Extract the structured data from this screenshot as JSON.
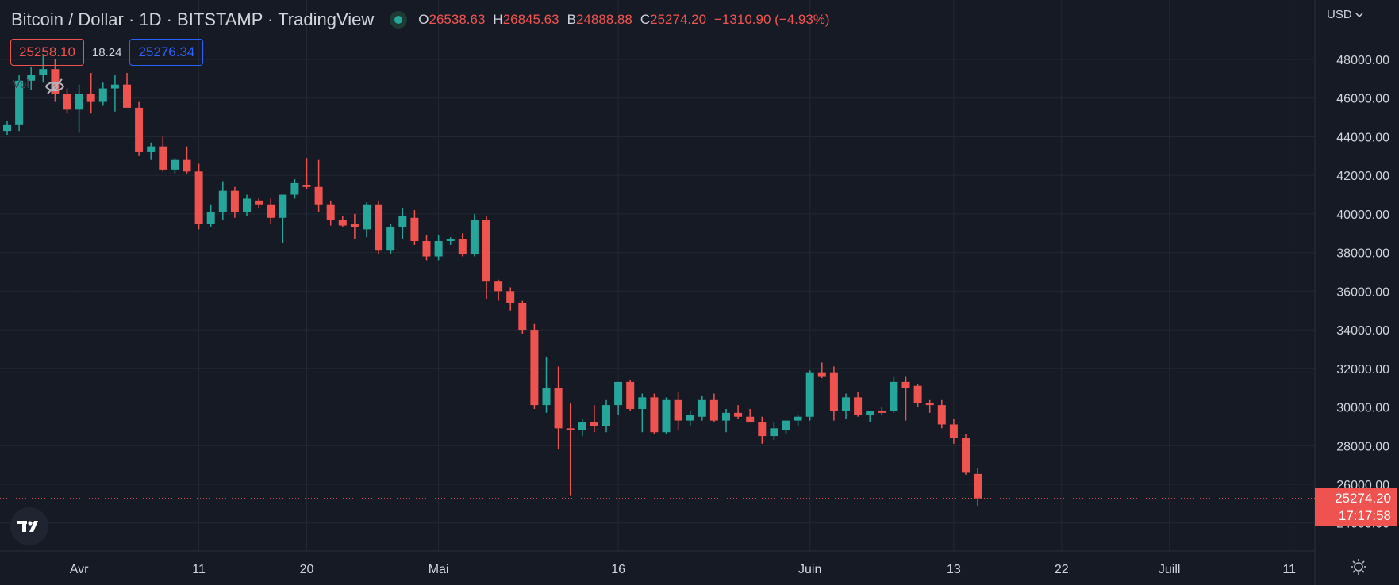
{
  "header": {
    "title": "Bitcoin / Dollar · 1D · BITSTAMP · TradingView",
    "ohlc": {
      "o_key": "O",
      "o": "26538.63",
      "h_key": "H",
      "h": "26845.63",
      "b_key": "B",
      "b": "24888.88",
      "c_key": "C",
      "c": "25274.20",
      "change": "−1310.90 (−4.93%)"
    }
  },
  "quotes": {
    "sell": "25258.10",
    "spread": "18.24",
    "buy": "25276.34"
  },
  "vol_label": "Vol",
  "currency": "USD",
  "last_price": {
    "value": "25274.20",
    "countdown": "17:17:58"
  },
  "colors": {
    "background": "#161a25",
    "up": "#26a69a",
    "down": "#ef5350",
    "grid": "#232733",
    "axis_text": "#d1d4dc"
  },
  "chart_data": {
    "type": "candlestick",
    "title": "Bitcoin / Dollar",
    "interval": "1D",
    "exchange": "BITSTAMP",
    "currency": "USD",
    "ylim": [
      23000,
      49000
    ],
    "y_ticks": [
      "48000.00",
      "46000.00",
      "44000.00",
      "42000.00",
      "40000.00",
      "38000.00",
      "36000.00",
      "34000.00",
      "32000.00",
      "30000.00",
      "28000.00",
      "26000.00",
      "24000.00"
    ],
    "x_ticks": [
      {
        "label": "Avr",
        "index": 6
      },
      {
        "label": "11",
        "index": 16
      },
      {
        "label": "20",
        "index": 25
      },
      {
        "label": "Mai",
        "index": 36
      },
      {
        "label": "16",
        "index": 51
      },
      {
        "label": "Juin",
        "index": 67
      },
      {
        "label": "13",
        "index": 79
      },
      {
        "label": "22",
        "index": 88
      },
      {
        "label": "Juill",
        "index": 97
      },
      {
        "label": "11",
        "index": 107
      }
    ],
    "total_slots": 110,
    "candles": [
      {
        "i": 0,
        "o": 44300,
        "h": 44800,
        "l": 44100,
        "c": 44600
      },
      {
        "i": 1,
        "o": 44600,
        "h": 47200,
        "l": 44300,
        "c": 46900
      },
      {
        "i": 2,
        "o": 46900,
        "h": 47600,
        "l": 46400,
        "c": 47200
      },
      {
        "i": 3,
        "o": 47200,
        "h": 48200,
        "l": 46800,
        "c": 47500
      },
      {
        "i": 4,
        "o": 47500,
        "h": 48000,
        "l": 45800,
        "c": 46200
      },
      {
        "i": 5,
        "o": 46200,
        "h": 46500,
        "l": 45200,
        "c": 45400
      },
      {
        "i": 6,
        "o": 45400,
        "h": 46700,
        "l": 44200,
        "c": 46200
      },
      {
        "i": 7,
        "o": 46200,
        "h": 47300,
        "l": 45200,
        "c": 45800
      },
      {
        "i": 8,
        "o": 45800,
        "h": 46800,
        "l": 45600,
        "c": 46500
      },
      {
        "i": 9,
        "o": 46500,
        "h": 47200,
        "l": 45300,
        "c": 46700
      },
      {
        "i": 10,
        "o": 46700,
        "h": 47300,
        "l": 45600,
        "c": 45500
      },
      {
        "i": 11,
        "o": 45500,
        "h": 45800,
        "l": 43000,
        "c": 43200
      },
      {
        "i": 12,
        "o": 43200,
        "h": 43700,
        "l": 42800,
        "c": 43500
      },
      {
        "i": 13,
        "o": 43500,
        "h": 44000,
        "l": 42200,
        "c": 42300
      },
      {
        "i": 14,
        "o": 42300,
        "h": 42900,
        "l": 42100,
        "c": 42800
      },
      {
        "i": 15,
        "o": 42800,
        "h": 43500,
        "l": 42100,
        "c": 42200
      },
      {
        "i": 16,
        "o": 42200,
        "h": 42600,
        "l": 39200,
        "c": 39500
      },
      {
        "i": 17,
        "o": 39500,
        "h": 40500,
        "l": 39300,
        "c": 40100
      },
      {
        "i": 18,
        "o": 40100,
        "h": 41700,
        "l": 39700,
        "c": 41200
      },
      {
        "i": 19,
        "o": 41200,
        "h": 41400,
        "l": 39800,
        "c": 40100
      },
      {
        "i": 20,
        "o": 40100,
        "h": 41000,
        "l": 39900,
        "c": 40800
      },
      {
        "i": 21,
        "o": 40700,
        "h": 40800,
        "l": 40300,
        "c": 40500
      },
      {
        "i": 22,
        "o": 40500,
        "h": 40800,
        "l": 39500,
        "c": 39800
      },
      {
        "i": 23,
        "o": 39800,
        "h": 41000,
        "l": 38500,
        "c": 41000
      },
      {
        "i": 24,
        "o": 41000,
        "h": 41800,
        "l": 40800,
        "c": 41600
      },
      {
        "i": 25,
        "o": 41500,
        "h": 42900,
        "l": 41300,
        "c": 41400
      },
      {
        "i": 26,
        "o": 41400,
        "h": 42800,
        "l": 40100,
        "c": 40500
      },
      {
        "i": 27,
        "o": 40500,
        "h": 40700,
        "l": 39400,
        "c": 39700
      },
      {
        "i": 28,
        "o": 39700,
        "h": 39900,
        "l": 39300,
        "c": 39400
      },
      {
        "i": 29,
        "o": 39500,
        "h": 40000,
        "l": 38700,
        "c": 39300
      },
      {
        "i": 30,
        "o": 39200,
        "h": 40600,
        "l": 38800,
        "c": 40500
      },
      {
        "i": 31,
        "o": 40500,
        "h": 40700,
        "l": 37900,
        "c": 38100
      },
      {
        "i": 32,
        "o": 38100,
        "h": 39500,
        "l": 37900,
        "c": 39300
      },
      {
        "i": 33,
        "o": 39300,
        "h": 40300,
        "l": 38700,
        "c": 39900
      },
      {
        "i": 34,
        "o": 39800,
        "h": 40200,
        "l": 38400,
        "c": 38600
      },
      {
        "i": 35,
        "o": 38600,
        "h": 38900,
        "l": 37600,
        "c": 37800
      },
      {
        "i": 36,
        "o": 37800,
        "h": 38900,
        "l": 37600,
        "c": 38600
      },
      {
        "i": 37,
        "o": 38600,
        "h": 38800,
        "l": 38400,
        "c": 38700
      },
      {
        "i": 38,
        "o": 38700,
        "h": 39000,
        "l": 37800,
        "c": 37900
      },
      {
        "i": 39,
        "o": 37900,
        "h": 40000,
        "l": 37800,
        "c": 39700
      },
      {
        "i": 40,
        "o": 39700,
        "h": 39900,
        "l": 35600,
        "c": 36500
      },
      {
        "i": 41,
        "o": 36500,
        "h": 36600,
        "l": 35500,
        "c": 36000
      },
      {
        "i": 42,
        "o": 36000,
        "h": 36200,
        "l": 35000,
        "c": 35400
      },
      {
        "i": 43,
        "o": 35400,
        "h": 35500,
        "l": 33800,
        "c": 34000
      },
      {
        "i": 44,
        "o": 34000,
        "h": 34300,
        "l": 29900,
        "c": 30100
      },
      {
        "i": 45,
        "o": 30100,
        "h": 32600,
        "l": 29700,
        "c": 31000
      },
      {
        "i": 46,
        "o": 31000,
        "h": 32100,
        "l": 27800,
        "c": 28900
      },
      {
        "i": 47,
        "o": 28900,
        "h": 30200,
        "l": 25400,
        "c": 28800
      },
      {
        "i": 48,
        "o": 28800,
        "h": 29400,
        "l": 28500,
        "c": 29200
      },
      {
        "i": 49,
        "o": 29200,
        "h": 30100,
        "l": 28700,
        "c": 29000
      },
      {
        "i": 50,
        "o": 29000,
        "h": 30400,
        "l": 28700,
        "c": 30100
      },
      {
        "i": 51,
        "o": 30100,
        "h": 31300,
        "l": 29600,
        "c": 31300
      },
      {
        "i": 52,
        "o": 31300,
        "h": 31400,
        "l": 29800,
        "c": 29900
      },
      {
        "i": 53,
        "o": 29900,
        "h": 30700,
        "l": 28700,
        "c": 30500
      },
      {
        "i": 54,
        "o": 30500,
        "h": 30700,
        "l": 28600,
        "c": 28700
      },
      {
        "i": 55,
        "o": 28700,
        "h": 30500,
        "l": 28600,
        "c": 30400
      },
      {
        "i": 56,
        "o": 30400,
        "h": 30800,
        "l": 28800,
        "c": 29300
      },
      {
        "i": 57,
        "o": 29300,
        "h": 29800,
        "l": 29000,
        "c": 29600
      },
      {
        "i": 58,
        "o": 29500,
        "h": 30600,
        "l": 29300,
        "c": 30400
      },
      {
        "i": 59,
        "o": 30400,
        "h": 30700,
        "l": 29200,
        "c": 29300
      },
      {
        "i": 60,
        "o": 29300,
        "h": 29900,
        "l": 28700,
        "c": 29700
      },
      {
        "i": 61,
        "o": 29700,
        "h": 30100,
        "l": 29400,
        "c": 29500
      },
      {
        "i": 62,
        "o": 29500,
        "h": 29900,
        "l": 29200,
        "c": 29200
      },
      {
        "i": 63,
        "o": 29200,
        "h": 29500,
        "l": 28100,
        "c": 28500
      },
      {
        "i": 64,
        "o": 28500,
        "h": 29200,
        "l": 28300,
        "c": 28900
      },
      {
        "i": 65,
        "o": 28800,
        "h": 29200,
        "l": 28600,
        "c": 29300
      },
      {
        "i": 66,
        "o": 29300,
        "h": 29600,
        "l": 29000,
        "c": 29500
      },
      {
        "i": 67,
        "o": 29500,
        "h": 31900,
        "l": 29300,
        "c": 31800
      },
      {
        "i": 68,
        "o": 31800,
        "h": 32300,
        "l": 31500,
        "c": 31600
      },
      {
        "i": 69,
        "o": 31800,
        "h": 32100,
        "l": 29300,
        "c": 29800
      },
      {
        "i": 70,
        "o": 29800,
        "h": 30700,
        "l": 29400,
        "c": 30500
      },
      {
        "i": 71,
        "o": 30500,
        "h": 30800,
        "l": 29500,
        "c": 29600
      },
      {
        "i": 72,
        "o": 29600,
        "h": 29800,
        "l": 29200,
        "c": 29800
      },
      {
        "i": 73,
        "o": 29800,
        "h": 30000,
        "l": 29600,
        "c": 29700
      },
      {
        "i": 74,
        "o": 29800,
        "h": 31600,
        "l": 29700,
        "c": 31300
      },
      {
        "i": 75,
        "o": 31300,
        "h": 31600,
        "l": 29300,
        "c": 31000
      },
      {
        "i": 76,
        "o": 31100,
        "h": 31200,
        "l": 30000,
        "c": 30200
      },
      {
        "i": 77,
        "o": 30200,
        "h": 30400,
        "l": 29700,
        "c": 30100
      },
      {
        "i": 78,
        "o": 30100,
        "h": 30400,
        "l": 28900,
        "c": 29100
      },
      {
        "i": 79,
        "o": 29100,
        "h": 29400,
        "l": 28100,
        "c": 28400
      },
      {
        "i": 80,
        "o": 28400,
        "h": 28600,
        "l": 26500,
        "c": 26600
      },
      {
        "i": 81,
        "o": 26538.63,
        "h": 26845.63,
        "l": 24888.88,
        "c": 25274.2
      }
    ]
  }
}
